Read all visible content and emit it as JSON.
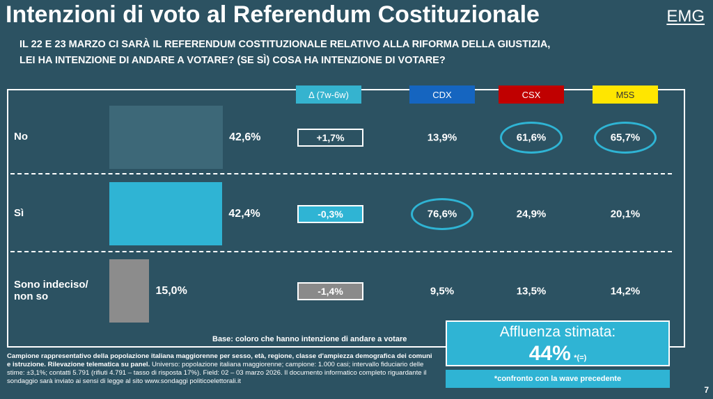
{
  "header": {
    "title": "Intenzioni di voto al Referendum Costituzionale",
    "logo": "EMG",
    "question": [
      "IL 22 E 23 MARZO CI SARÀ IL REFERENDUM COSTITUZIONALE RELATIVO ALLA RIFORMA DELLA GIUSTIZIA,",
      "LEI HA INTENZIONE DI ANDARE A VOTARE? (SE SÌ) COSA HA INTENZIONE DI VOTARE?"
    ]
  },
  "chart_data": {
    "type": "bar",
    "orientation": "horizontal",
    "categories": [
      "No",
      "Sì",
      "Sono indeciso/\nnon so"
    ],
    "values": [
      42.6,
      42.4,
      15.0
    ],
    "value_labels": [
      "42,6%",
      "42,4%",
      "15,0%"
    ],
    "colors": [
      "#3d6878",
      "#2fb4d4",
      "#8c8c8c"
    ],
    "columns": [
      {
        "name": "Δ (7w-6w)",
        "color": "#35b3cf",
        "text_color": "#ffffff",
        "values": [
          "+1,7%",
          "-0,3%",
          "-1,4%"
        ]
      },
      {
        "name": "CDX",
        "color": "#1565c0",
        "text_color": "#ffffff",
        "values": [
          "13,9%",
          "76,6%",
          "9,5%"
        ]
      },
      {
        "name": "CSX",
        "color": "#c00000",
        "text_color": "#ffffff",
        "values": [
          "61,6%",
          "24,9%",
          "13,5%"
        ]
      },
      {
        "name": "M5S",
        "color": "#ffe600",
        "text_color": "#333333",
        "values": [
          "65,7%",
          "20,1%",
          "14,2%"
        ]
      }
    ]
  },
  "base_note": "Base: coloro che hanno intenzione di andare a votare",
  "turnout": {
    "title": "Affluenza stimata:",
    "value": "44%",
    "change": "*(=)",
    "note": "*confronto con la wave precedente"
  },
  "footnote": {
    "bold": "Campione rappresentativo della popolazione italiana maggiorenne per sesso, età, regione, classe d'ampiezza demografica dei comuni e istruzione. Rilevazione telematica su panel.",
    "regular": " Universo: popolazione italiana maggiorenne; campione: 1.000 casi; intervallo fiduciario delle stime: ±3,1%; contatti 5.791 (rifiuti 4.791 – tasso di risposta 17%). Field: 02 – 03 marzo 2026. Il documento informatico completo riguardante il sondaggio sarà inviato ai sensi di legge al sito www.sondaggi politicoelettorali.it"
  },
  "page_number": "7"
}
